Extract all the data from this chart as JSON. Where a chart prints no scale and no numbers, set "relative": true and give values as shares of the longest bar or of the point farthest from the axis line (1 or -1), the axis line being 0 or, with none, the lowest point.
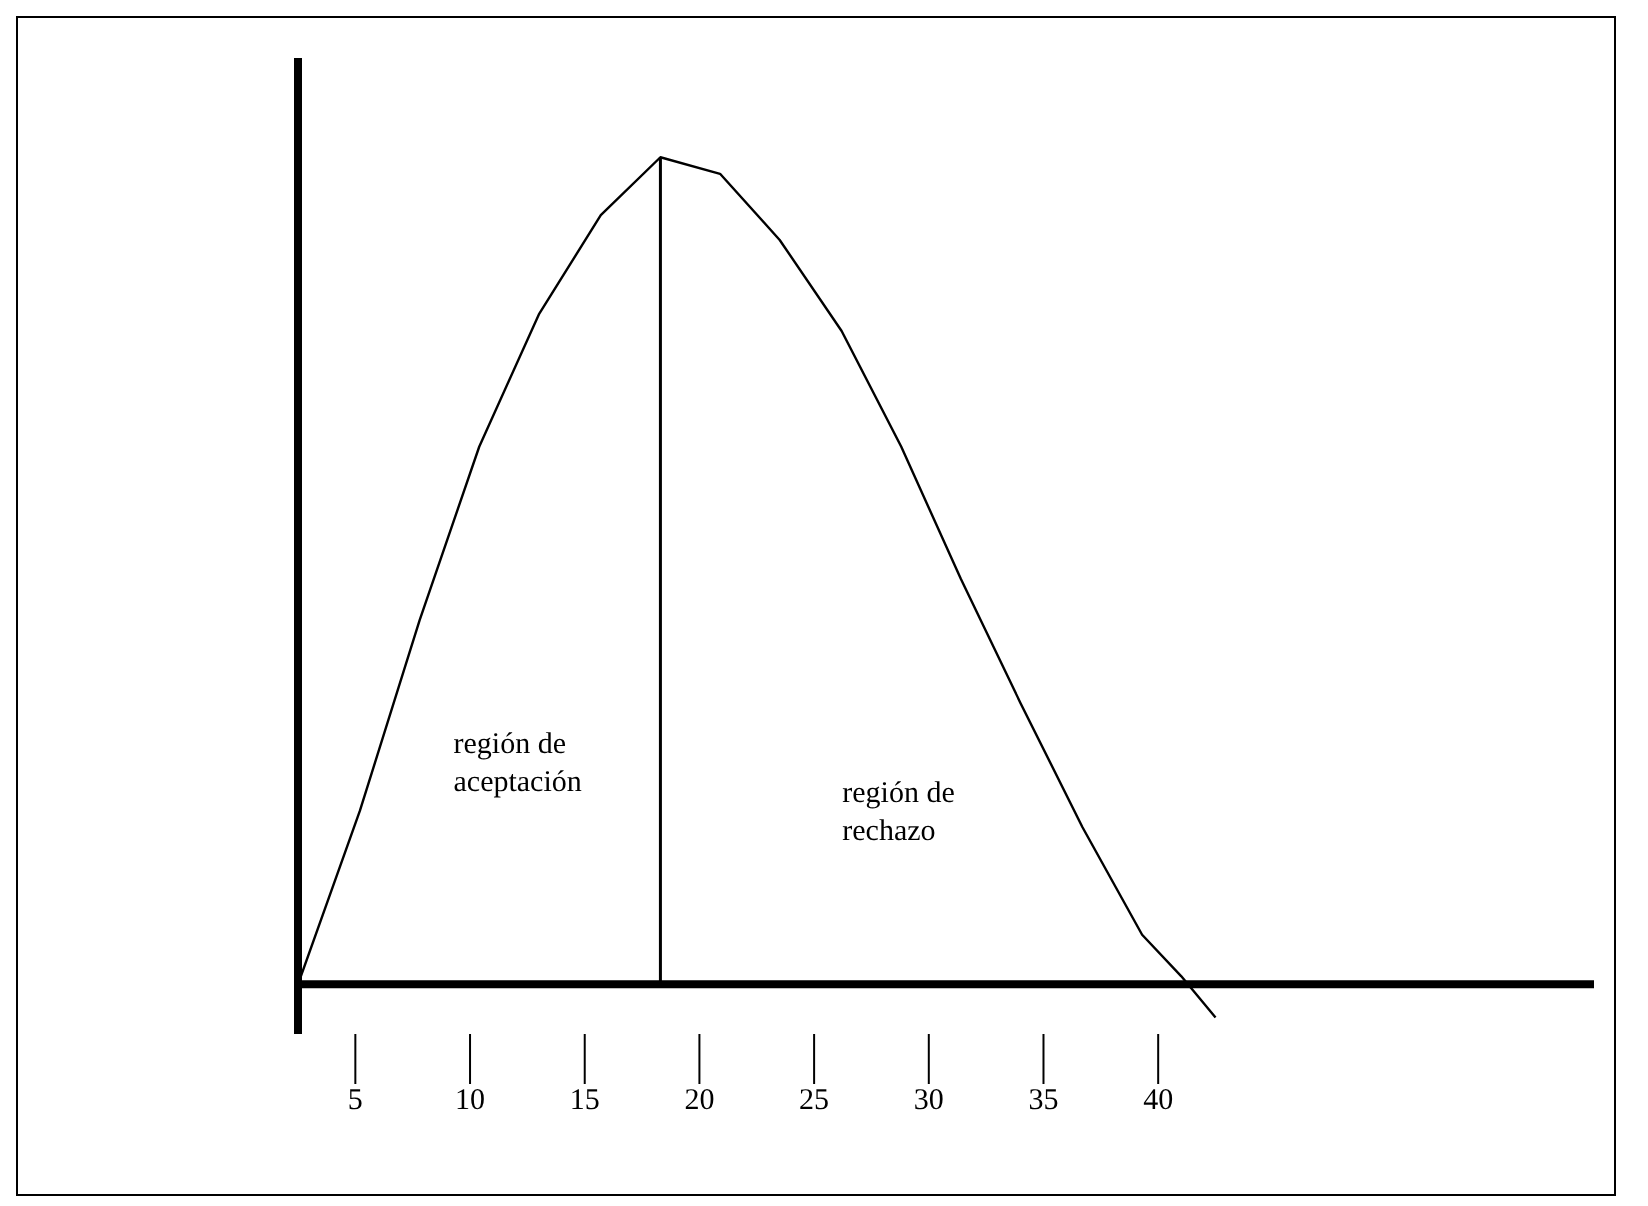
{
  "chart_data": {
    "type": "line",
    "relative": true,
    "color": "#000000",
    "marker": "none",
    "x": [
      2.5,
      5.2,
      7.8,
      10.4,
      13.0,
      15.7,
      18.3,
      20.9,
      23.5,
      26.2,
      28.8,
      31.4,
      34.0,
      36.7,
      39.3,
      41.0,
      42.5
    ],
    "values": [
      0,
      0.21,
      0.44,
      0.65,
      0.81,
      0.93,
      1,
      0.98,
      0.9,
      0.79,
      0.65,
      0.49,
      0.34,
      0.19,
      0.06,
      0.01,
      -0.04
    ],
    "xlim": [
      2.5,
      59
    ],
    "xticks": [
      5,
      10,
      15,
      20,
      25,
      30,
      35,
      40
    ],
    "ref_lines": [
      {
        "axis": "x",
        "value": 18.3,
        "color": "#000000"
      }
    ],
    "annotations": [
      "región de aceptación",
      "región de rechazo"
    ]
  }
}
